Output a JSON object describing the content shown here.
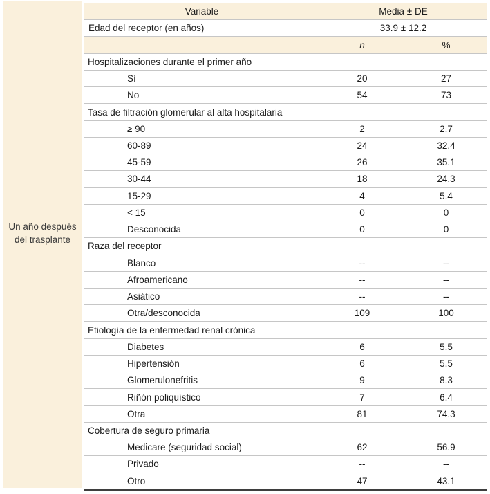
{
  "colors": {
    "band_background": "#faf0dc",
    "row_separator": "#c6c6c6",
    "table_top_line": "#8e8e8e",
    "table_bottom_line": "#3e3e3e",
    "text": "#1b1b1b"
  },
  "side_label": {
    "line1": "Un año después",
    "line2": "del trasplante"
  },
  "table": {
    "header_row": {
      "variable": "Variable",
      "media": "Media ± DE"
    },
    "mean_row": {
      "label": "Edad del receptor (en años)",
      "value": "33.9 ± 12.2"
    },
    "subheader_row": {
      "n": "n",
      "percent": "%"
    },
    "rows": [
      {
        "type": "group",
        "label": "Hospitalizaciones durante el primer año"
      },
      {
        "type": "item",
        "label": "Sí",
        "n": "20",
        "pct": "27"
      },
      {
        "type": "item",
        "label": "No",
        "n": "54",
        "pct": "73"
      },
      {
        "type": "group",
        "label": "Tasa de filtración glomerular al alta hospitalaria"
      },
      {
        "type": "item",
        "label": "≥ 90",
        "n": "2",
        "pct": "2.7"
      },
      {
        "type": "item",
        "label": "60-89",
        "n": "24",
        "pct": "32.4"
      },
      {
        "type": "item",
        "label": "45-59",
        "n": "26",
        "pct": "35.1"
      },
      {
        "type": "item",
        "label": "30-44",
        "n": "18",
        "pct": "24.3"
      },
      {
        "type": "item",
        "label": "15-29",
        "n": "4",
        "pct": "5.4"
      },
      {
        "type": "item",
        "label": "< 15",
        "n": "0",
        "pct": "0"
      },
      {
        "type": "item",
        "label": "Desconocida",
        "n": "0",
        "pct": "0"
      },
      {
        "type": "group",
        "label": "Raza del receptor"
      },
      {
        "type": "item",
        "label": "Blanco",
        "n": "--",
        "pct": "--"
      },
      {
        "type": "item",
        "label": "Afroamericano",
        "n": "--",
        "pct": "--"
      },
      {
        "type": "item",
        "label": "Asiático",
        "n": "--",
        "pct": "--"
      },
      {
        "type": "item",
        "label": "Otra/desconocida",
        "n": "109",
        "pct": "100"
      },
      {
        "type": "group",
        "label": "Etiología de la enfermedad renal crónica"
      },
      {
        "type": "item",
        "label": "Diabetes",
        "n": "6",
        "pct": "5.5"
      },
      {
        "type": "item",
        "label": "Hipertensión",
        "n": "6",
        "pct": "5.5"
      },
      {
        "type": "item",
        "label": "Glomerulonefritis",
        "n": "9",
        "pct": "8.3"
      },
      {
        "type": "item",
        "label": "Riñón poliquístico",
        "n": "7",
        "pct": "6.4"
      },
      {
        "type": "item",
        "label": "Otra",
        "n": "81",
        "pct": "74.3"
      },
      {
        "type": "group",
        "label": "Cobertura de seguro primaria"
      },
      {
        "type": "item",
        "label": "Medicare (seguridad social)",
        "n": "62",
        "pct": "56.9"
      },
      {
        "type": "item",
        "label": "Privado",
        "n": "--",
        "pct": "--"
      },
      {
        "type": "item",
        "label": "Otro",
        "n": "47",
        "pct": "43.1"
      }
    ]
  }
}
